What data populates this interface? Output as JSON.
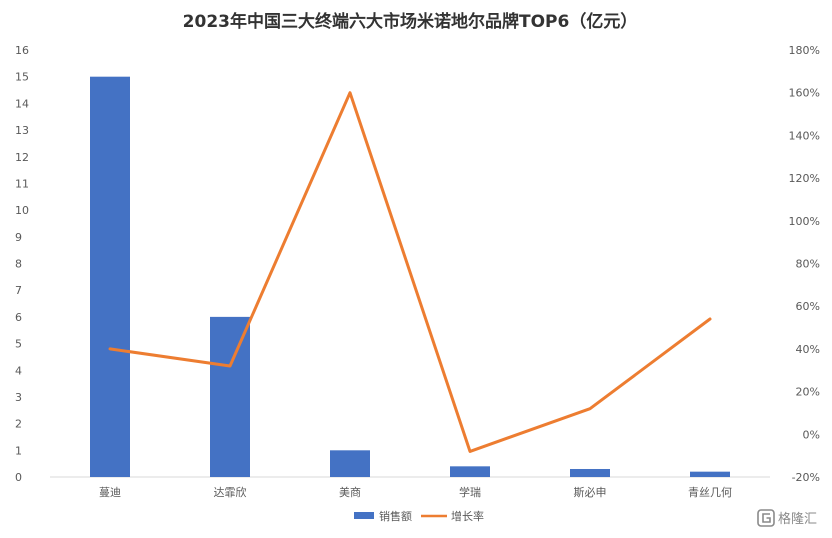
{
  "chart_data": {
    "type": "bar",
    "title": "2023年中国三大终端六大市场米诺地尔品牌TOP6（亿元）",
    "categories": [
      "蔓迪",
      "达霏欣",
      "美商",
      "学瑞",
      "斯必申",
      "青丝几何"
    ],
    "series": [
      {
        "name": "销售额",
        "type": "bar",
        "axis": "left",
        "color": "#4472C4",
        "values": [
          15,
          6,
          1,
          0.4,
          0.3,
          0.2
        ]
      },
      {
        "name": "增长率",
        "type": "line",
        "axis": "right",
        "color": "#ED7D31",
        "values": [
          40,
          32,
          160,
          -8,
          12,
          54
        ]
      }
    ],
    "y_left": {
      "min": 0,
      "max": 16,
      "step": 1,
      "ticks": [
        "0",
        "1",
        "2",
        "3",
        "4",
        "5",
        "6",
        "7",
        "8",
        "9",
        "10",
        "11",
        "12",
        "13",
        "14",
        "15",
        "16"
      ]
    },
    "y_right": {
      "min": -20,
      "max": 180,
      "step": 20,
      "ticks": [
        "-20%",
        "0%",
        "20%",
        "40%",
        "60%",
        "80%",
        "100%",
        "120%",
        "140%",
        "160%",
        "180%"
      ]
    },
    "grid": false,
    "legend_position": "bottom"
  },
  "watermark": {
    "text": "格隆汇",
    "icon": "gelonghui-logo-icon"
  }
}
